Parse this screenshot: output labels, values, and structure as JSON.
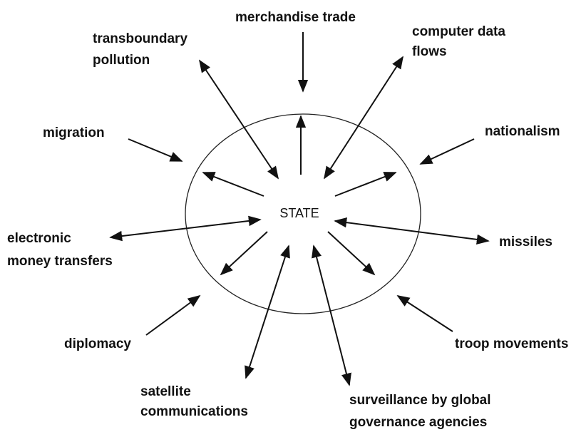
{
  "center": {
    "label": "STATE"
  },
  "nodes": [
    {
      "lines": [
        "merchandise trade"
      ]
    },
    {
      "lines": [
        "transboundary",
        "pollution"
      ]
    },
    {
      "lines": [
        "computer data",
        "flows"
      ]
    },
    {
      "lines": [
        "migration"
      ]
    },
    {
      "lines": [
        "nationalism"
      ]
    },
    {
      "lines": [
        "electronic",
        "money transfers"
      ]
    },
    {
      "lines": [
        "missiles"
      ]
    },
    {
      "lines": [
        "diplomacy"
      ]
    },
    {
      "lines": [
        "troop movements"
      ]
    },
    {
      "lines": [
        "satellite",
        "communications"
      ]
    },
    {
      "lines": [
        "surveillance by global",
        "governance agencies"
      ]
    }
  ]
}
